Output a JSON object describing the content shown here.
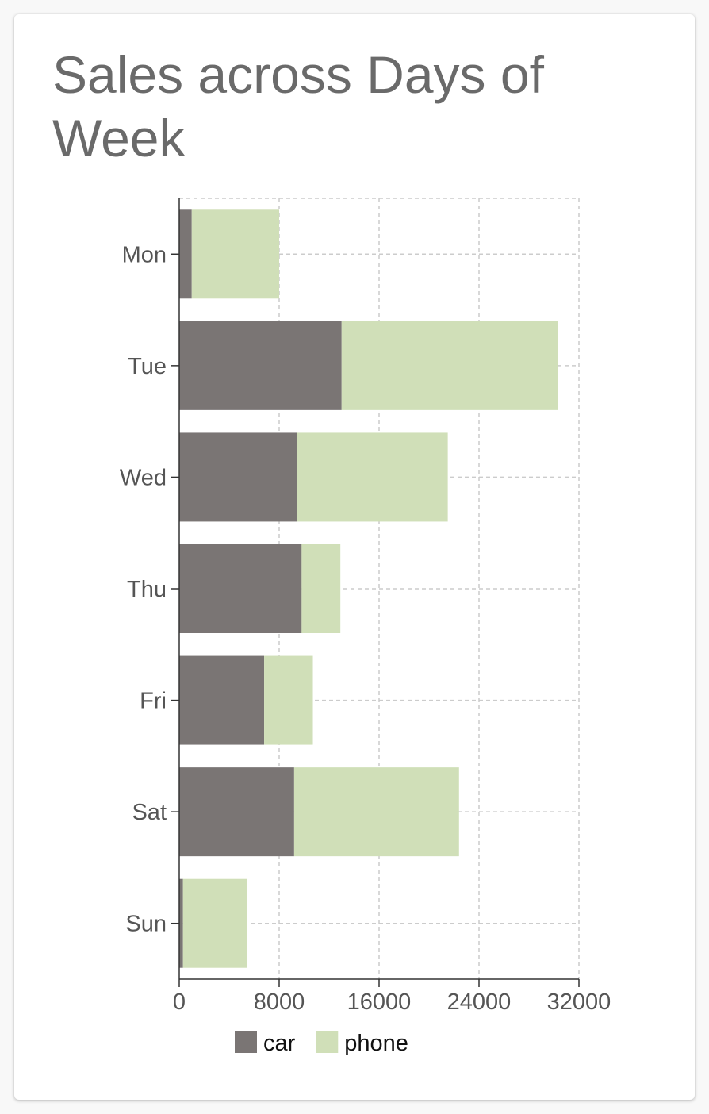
{
  "chart_data": {
    "type": "bar",
    "orientation": "horizontal",
    "stacked": true,
    "title": "Sales across Days of Week",
    "categories": [
      "Mon",
      "Tue",
      "Wed",
      "Thu",
      "Fri",
      "Sat",
      "Sun"
    ],
    "series": [
      {
        "name": "car",
        "color": "#7a7574",
        "values": [
          1000,
          13000,
          9400,
          9800,
          6800,
          9200,
          300
        ]
      },
      {
        "name": "phone",
        "color": "#d0dfb8",
        "values": [
          7000,
          17300,
          12100,
          3100,
          3900,
          13200,
          5100
        ]
      }
    ],
    "xticks": [
      "0",
      "8000",
      "16000",
      "24000",
      "32000"
    ],
    "xlim": [
      0,
      32000
    ],
    "grid": true,
    "legend": "bottom"
  }
}
